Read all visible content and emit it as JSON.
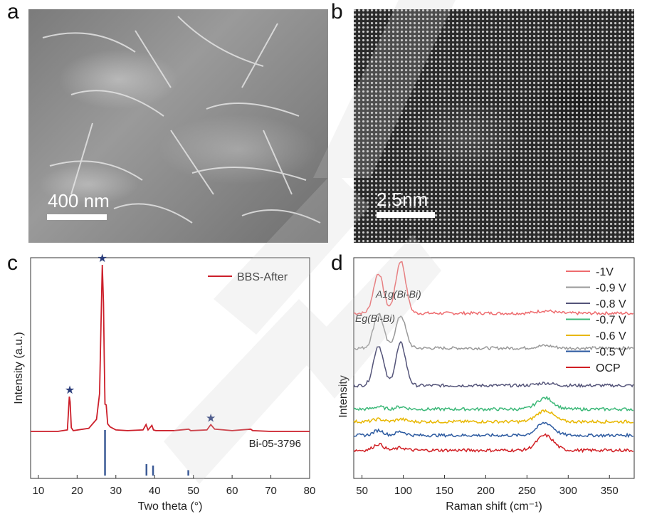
{
  "panels": {
    "a": {
      "letter": "a",
      "scale_label": "400 nm"
    },
    "b": {
      "letter": "b",
      "scale_label": "2.5nm"
    },
    "c": {
      "letter": "c"
    },
    "d": {
      "letter": "d"
    }
  },
  "chart_data": [
    {
      "panel": "c",
      "type": "line",
      "xlabel": "Two theta (°)",
      "ylabel": "Intensity (a.u.)",
      "xlim": [
        8,
        80
      ],
      "xticks": [
        10,
        20,
        30,
        40,
        50,
        60,
        70,
        80
      ],
      "grid": false,
      "legend_position": "top-right",
      "series": [
        {
          "name": "BBS-After",
          "color": "#cc1f2a",
          "x": [
            8,
            15,
            17.5,
            18.0,
            18.2,
            18.5,
            19,
            23,
            25,
            25.8,
            26.2,
            26.5,
            26.8,
            27.0,
            27.2,
            27.5,
            27.9,
            28.5,
            30,
            33,
            37,
            37.8,
            38.3,
            39.3,
            39.7,
            40.3,
            45,
            48.8,
            49.3,
            53.5,
            54.5,
            55.5,
            60,
            64.8,
            65.3,
            70,
            75,
            80
          ],
          "y": [
            0,
            0,
            0.2,
            4.6,
            3.9,
            0.5,
            0.1,
            0.4,
            1.6,
            5.0,
            15.0,
            22.0,
            17.0,
            10.0,
            3.6,
            3.5,
            1.0,
            0.6,
            0.2,
            0.1,
            0.2,
            0.9,
            0.2,
            0.8,
            0.2,
            0.1,
            0.1,
            0.3,
            0.1,
            0.2,
            0.9,
            0.3,
            0.1,
            0.3,
            0.1,
            0,
            0,
            0
          ]
        }
      ],
      "reference": {
        "label": "Bi-05-3796",
        "color": "#3b5a96",
        "positions": [
          27.2,
          37.9,
          39.6,
          48.7
        ],
        "relative_intensity": [
          100,
          25,
          22,
          12
        ]
      },
      "marked_peaks": {
        "symbol": "★",
        "color": "#2c3e7b",
        "positions": [
          18.1,
          26.5,
          54.5
        ]
      }
    },
    {
      "panel": "d",
      "type": "line",
      "xlabel": "Raman shift (cm⁻¹)",
      "ylabel": "Intensity",
      "xlim": [
        40,
        380
      ],
      "xticks": [
        50,
        100,
        150,
        200,
        250,
        300,
        350
      ],
      "grid": false,
      "legend_position": "top-right",
      "annotations": [
        {
          "text": "Eg(Bi-Bi)",
          "x": 70
        },
        {
          "text": "A1g(Bi-Bi)",
          "x": 97
        }
      ],
      "series": [
        {
          "name": "-1V",
          "color": "#ee6b6e",
          "offset": 6.0,
          "peaks": [
            [
              70,
              1.6
            ],
            [
              97,
              2.1
            ],
            [
              272,
              0.1
            ]
          ]
        },
        {
          "name": "-0.9 V",
          "color": "#999999",
          "offset": 4.6,
          "peaks": [
            [
              70,
              1.4
            ],
            [
              97,
              1.3
            ],
            [
              272,
              0.1
            ]
          ]
        },
        {
          "name": "-0.8 V",
          "color": "#545479",
          "offset": 3.1,
          "peaks": [
            [
              70,
              1.6
            ],
            [
              97,
              1.7
            ],
            [
              272,
              0.1
            ]
          ]
        },
        {
          "name": "-0.7 V",
          "color": "#3cb878",
          "offset": 2.15,
          "peaks": [
            [
              70,
              0.1
            ],
            [
              97,
              0.1
            ],
            [
              272,
              0.45
            ]
          ]
        },
        {
          "name": "-0.6 V",
          "color": "#e8b700",
          "offset": 1.65,
          "peaks": [
            [
              70,
              0.1
            ],
            [
              97,
              0.1
            ],
            [
              272,
              0.45
            ]
          ]
        },
        {
          "name": "-0.5 V",
          "color": "#2c5aa0",
          "offset": 1.1,
          "peaks": [
            [
              70,
              0.2
            ],
            [
              97,
              0.15
            ],
            [
              272,
              0.5
            ]
          ]
        },
        {
          "name": "OCP",
          "color": "#d11f24",
          "offset": 0.5,
          "peaks": [
            [
              70,
              0.25
            ],
            [
              97,
              0.1
            ],
            [
              272,
              0.6
            ]
          ]
        }
      ]
    }
  ]
}
